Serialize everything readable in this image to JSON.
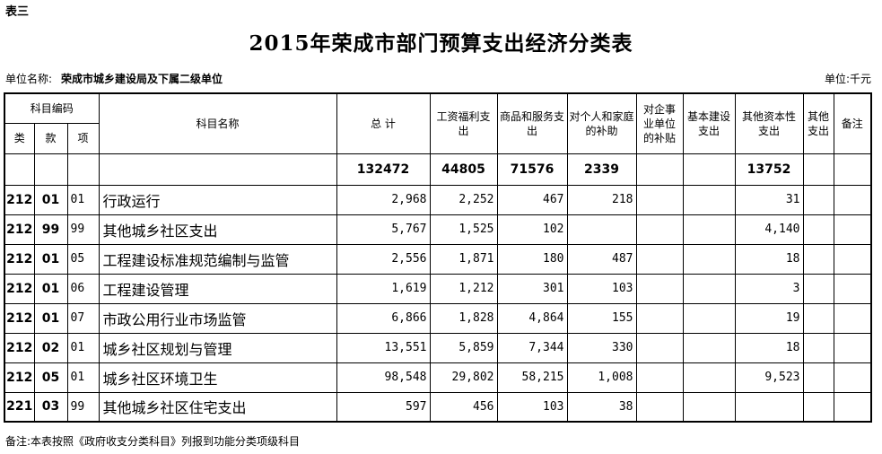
{
  "table_label": "表三",
  "title": "2015年荣成市部门预算支出经济分类表",
  "unit": {
    "org_label": "单位名称:",
    "org_name": "荣成市城乡建设局及下属二级单位",
    "currency": "单位:千元"
  },
  "headers": {
    "code_group": "科目编码",
    "lei": "类",
    "kuan": "款",
    "xiang": "项",
    "name": "科目名称",
    "total": "总 计",
    "salary": "工资福利支出",
    "goods": "商品和服务支出",
    "personal": "对个人和家庭的补助",
    "enterprise": "对企事业单位的补贴",
    "construction": "基本建设支出",
    "capital": "其他资本性支出",
    "other": "其他支出",
    "remark": "备注"
  },
  "totals": {
    "total": "132472",
    "salary": "44805",
    "goods": "71576",
    "personal": "2339",
    "enterprise": "",
    "construction": "",
    "capital": "13752",
    "other": "",
    "remark": ""
  },
  "rows": [
    {
      "lei": "212",
      "kuan": "01",
      "xiang": "01",
      "name": "行政运行",
      "total": "2,968",
      "salary": "2,252",
      "goods": "467",
      "personal": "218",
      "enterprise": "",
      "construction": "",
      "capital": "31",
      "other": "",
      "remark": ""
    },
    {
      "lei": "212",
      "kuan": "99",
      "xiang": "99",
      "name": "其他城乡社区支出",
      "total": "5,767",
      "salary": "1,525",
      "goods": "102",
      "personal": "",
      "enterprise": "",
      "construction": "",
      "capital": "4,140",
      "other": "",
      "remark": ""
    },
    {
      "lei": "212",
      "kuan": "01",
      "xiang": "05",
      "name": "工程建设标准规范编制与监管",
      "total": "2,556",
      "salary": "1,871",
      "goods": "180",
      "personal": "487",
      "enterprise": "",
      "construction": "",
      "capital": "18",
      "other": "",
      "remark": ""
    },
    {
      "lei": "212",
      "kuan": "01",
      "xiang": "06",
      "name": "工程建设管理",
      "total": "1,619",
      "salary": "1,212",
      "goods": "301",
      "personal": "103",
      "enterprise": "",
      "construction": "",
      "capital": "3",
      "other": "",
      "remark": ""
    },
    {
      "lei": "212",
      "kuan": "01",
      "xiang": "07",
      "name": "市政公用行业市场监管",
      "total": "6,866",
      "salary": "1,828",
      "goods": "4,864",
      "personal": "155",
      "enterprise": "",
      "construction": "",
      "capital": "19",
      "other": "",
      "remark": ""
    },
    {
      "lei": "212",
      "kuan": "02",
      "xiang": "01",
      "name": "城乡社区规划与管理",
      "total": "13,551",
      "salary": "5,859",
      "goods": "7,344",
      "personal": "330",
      "enterprise": "",
      "construction": "",
      "capital": "18",
      "other": "",
      "remark": ""
    },
    {
      "lei": "212",
      "kuan": "05",
      "xiang": "01",
      "name": "城乡社区环境卫生",
      "total": "98,548",
      "salary": "29,802",
      "goods": "58,215",
      "personal": "1,008",
      "enterprise": "",
      "construction": "",
      "capital": "9,523",
      "other": "",
      "remark": ""
    },
    {
      "lei": "221",
      "kuan": "03",
      "xiang": "99",
      "name": "其他城乡社区住宅支出",
      "total": "597",
      "salary": "456",
      "goods": "103",
      "personal": "38",
      "enterprise": "",
      "construction": "",
      "capital": "",
      "other": "",
      "remark": ""
    }
  ],
  "note": "备注:本表按照《政府收支分类科目》列报到功能分类项级科目"
}
